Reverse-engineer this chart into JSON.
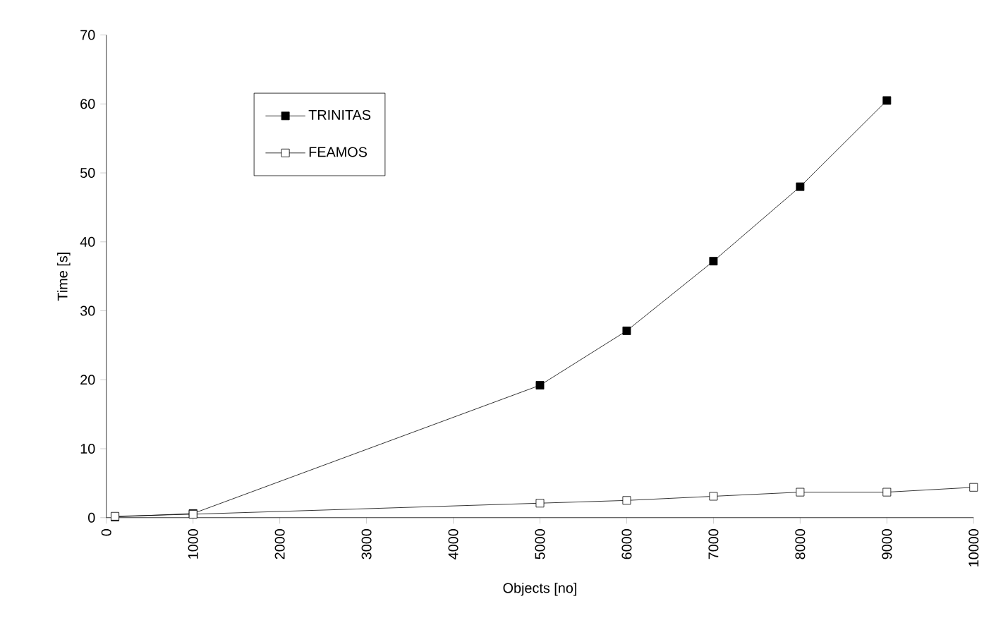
{
  "chart_data": {
    "type": "line",
    "xlabel": "Objects [no]",
    "ylabel": "Time [s]",
    "xlim": [
      0,
      10000
    ],
    "xticks": [
      0,
      1000,
      2000,
      3000,
      4000,
      5000,
      6000,
      7000,
      8000,
      9000,
      10000
    ],
    "ylim": [
      0,
      70
    ],
    "yticks": [
      0,
      10,
      20,
      30,
      40,
      50,
      60,
      70
    ],
    "grid": false,
    "legend": "top left",
    "series": [
      {
        "name": "TRINITAS",
        "color": "#000000",
        "marker": "square",
        "x": [
          100,
          1000,
          5000,
          6000,
          7000,
          8000,
          9000
        ],
        "values": [
          0.1,
          0.6,
          19.2,
          27.1,
          37.2,
          48.0,
          60.5
        ]
      },
      {
        "name": "FEAMOS",
        "color": "#000000",
        "marker": "square-open",
        "x": [
          100,
          1000,
          5000,
          6000,
          7000,
          8000,
          9000,
          10000
        ],
        "values": [
          0.2,
          0.5,
          2.1,
          2.5,
          3.1,
          3.7,
          3.7,
          4.4
        ]
      }
    ]
  }
}
